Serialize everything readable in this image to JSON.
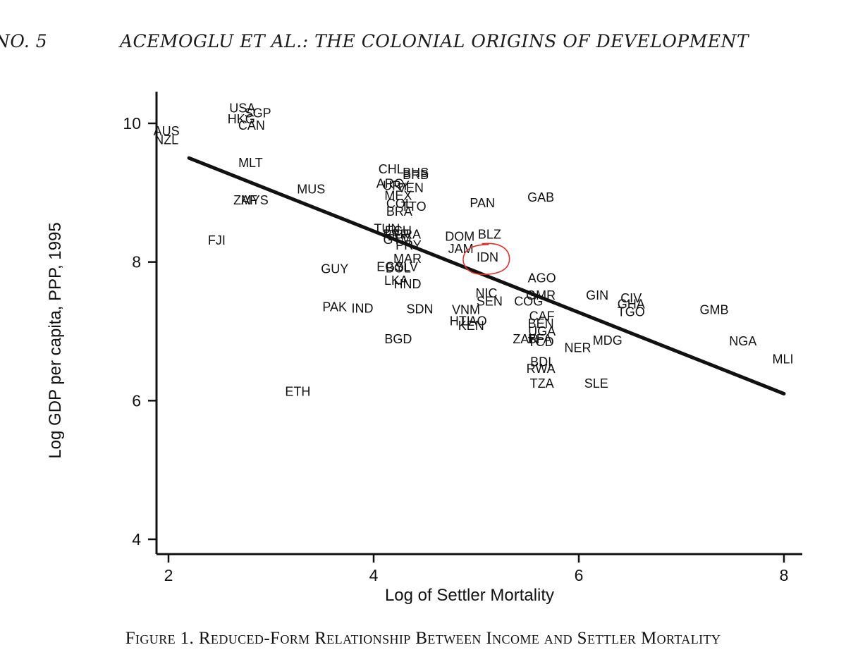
{
  "header": {
    "page_label": "NO. 5",
    "running_title": "ACEMOGLU ET AL.: THE COLONIAL ORIGINS OF DEVELOPMENT"
  },
  "caption": "Figure 1. Reduced-Form Relationship Between Income and Settler Mortality",
  "colors": {
    "ink": "#111111",
    "annotation": "#e0302a"
  },
  "chart_data": {
    "type": "scatter",
    "title": "",
    "xlabel": "Log of Settler Mortality",
    "ylabel": "Log GDP per capita, PPP, 1995",
    "xlim": [
      1.9,
      8.1
    ],
    "ylim": [
      3.9,
      10.45
    ],
    "xticks": [
      2,
      4,
      6,
      8
    ],
    "yticks": [
      4,
      6,
      8,
      10
    ],
    "grid": false,
    "fit_line": {
      "x": [
        2.2,
        8.0
      ],
      "y": [
        9.5,
        6.1
      ]
    },
    "annotation": {
      "type": "circle",
      "label": "IDN"
    },
    "points": [
      {
        "label": "USA",
        "x": 2.72,
        "y": 10.22
      },
      {
        "label": "SGP",
        "x": 2.87,
        "y": 10.15
      },
      {
        "label": "HKG",
        "x": 2.71,
        "y": 10.06
      },
      {
        "label": "CAN",
        "x": 2.81,
        "y": 9.97
      },
      {
        "label": "AUS",
        "x": 1.98,
        "y": 9.89
      },
      {
        "label": "NZL",
        "x": 1.98,
        "y": 9.76
      },
      {
        "label": "MLT",
        "x": 2.8,
        "y": 9.43
      },
      {
        "label": "CHL",
        "x": 4.17,
        "y": 9.34
      },
      {
        "label": "BHS",
        "x": 4.41,
        "y": 9.29
      },
      {
        "label": "BRB",
        "x": 4.41,
        "y": 9.26
      },
      {
        "label": "ARG",
        "x": 4.16,
        "y": 9.13
      },
      {
        "label": "URY",
        "x": 4.22,
        "y": 9.1
      },
      {
        "label": "VEN",
        "x": 4.36,
        "y": 9.07
      },
      {
        "label": "MUS",
        "x": 3.39,
        "y": 9.05
      },
      {
        "label": "MEX",
        "x": 4.24,
        "y": 8.96
      },
      {
        "label": "GAB",
        "x": 5.63,
        "y": 8.93
      },
      {
        "label": "MYS",
        "x": 2.84,
        "y": 8.89
      },
      {
        "label": "ZAF",
        "x": 2.75,
        "y": 8.89
      },
      {
        "label": "PAN",
        "x": 5.06,
        "y": 8.85
      },
      {
        "label": "COL",
        "x": 4.25,
        "y": 8.84
      },
      {
        "label": "TTO",
        "x": 4.39,
        "y": 8.8
      },
      {
        "label": "BRA",
        "x": 4.25,
        "y": 8.73
      },
      {
        "label": "TUN",
        "x": 4.13,
        "y": 8.48
      },
      {
        "label": "ECU",
        "x": 4.24,
        "y": 8.45
      },
      {
        "label": "PER",
        "x": 4.22,
        "y": 8.4
      },
      {
        "label": "CRA",
        "x": 4.33,
        "y": 8.4
      },
      {
        "label": "BLZ",
        "x": 5.13,
        "y": 8.4
      },
      {
        "label": "DOM",
        "x": 4.84,
        "y": 8.37
      },
      {
        "label": "GTM",
        "x": 4.23,
        "y": 8.32
      },
      {
        "label": "PRY",
        "x": 4.34,
        "y": 8.24
      },
      {
        "label": "JAM",
        "x": 4.85,
        "y": 8.19
      },
      {
        "label": "IDN",
        "x": 5.11,
        "y": 8.07
      },
      {
        "label": "MAR",
        "x": 4.33,
        "y": 8.05
      },
      {
        "label": "EGY",
        "x": 4.16,
        "y": 7.93
      },
      {
        "label": "SLV",
        "x": 4.32,
        "y": 7.93
      },
      {
        "label": "BOL",
        "x": 4.24,
        "y": 7.91
      },
      {
        "label": "GUY",
        "x": 3.62,
        "y": 7.9
      },
      {
        "label": "AGO",
        "x": 5.64,
        "y": 7.77
      },
      {
        "label": "LKA",
        "x": 4.22,
        "y": 7.73
      },
      {
        "label": "HND",
        "x": 4.33,
        "y": 7.68
      },
      {
        "label": "NIC",
        "x": 5.1,
        "y": 7.55
      },
      {
        "label": "GMR",
        "x": 5.63,
        "y": 7.52
      },
      {
        "label": "GIN",
        "x": 6.18,
        "y": 7.52
      },
      {
        "label": "CIV",
        "x": 6.51,
        "y": 7.48
      },
      {
        "label": "SEN",
        "x": 5.13,
        "y": 7.43
      },
      {
        "label": "COG",
        "x": 5.51,
        "y": 7.43
      },
      {
        "label": "GHA",
        "x": 6.51,
        "y": 7.39
      },
      {
        "label": "PAK",
        "x": 3.62,
        "y": 7.35
      },
      {
        "label": "IND",
        "x": 3.89,
        "y": 7.33
      },
      {
        "label": "SDN",
        "x": 4.45,
        "y": 7.32
      },
      {
        "label": "GMB",
        "x": 7.32,
        "y": 7.31
      },
      {
        "label": "VNM",
        "x": 4.9,
        "y": 7.31
      },
      {
        "label": "TGO",
        "x": 6.51,
        "y": 7.28
      },
      {
        "label": "CAF",
        "x": 5.64,
        "y": 7.22
      },
      {
        "label": "HTI",
        "x": 4.84,
        "y": 7.15
      },
      {
        "label": "LAO",
        "x": 4.98,
        "y": 7.15
      },
      {
        "label": "BEN",
        "x": 5.63,
        "y": 7.11
      },
      {
        "label": "KEN",
        "x": 4.95,
        "y": 7.08
      },
      {
        "label": "UGA",
        "x": 5.64,
        "y": 7.0
      },
      {
        "label": "BGD",
        "x": 4.24,
        "y": 6.89
      },
      {
        "label": "ZAR",
        "x": 5.48,
        "y": 6.89
      },
      {
        "label": "BFA",
        "x": 5.62,
        "y": 6.89
      },
      {
        "label": "TCD",
        "x": 5.63,
        "y": 6.85
      },
      {
        "label": "MDG",
        "x": 6.28,
        "y": 6.87
      },
      {
        "label": "NGA",
        "x": 7.6,
        "y": 6.86
      },
      {
        "label": "NER",
        "x": 5.99,
        "y": 6.76
      },
      {
        "label": "MLI",
        "x": 7.99,
        "y": 6.6
      },
      {
        "label": "BDI",
        "x": 5.63,
        "y": 6.56
      },
      {
        "label": "RWA",
        "x": 5.63,
        "y": 6.46
      },
      {
        "label": "TZA",
        "x": 5.64,
        "y": 6.25
      },
      {
        "label": "SLE",
        "x": 6.17,
        "y": 6.25
      },
      {
        "label": "FJI",
        "x": 2.47,
        "y": 8.31
      },
      {
        "label": "ETH",
        "x": 3.26,
        "y": 6.13
      }
    ]
  }
}
